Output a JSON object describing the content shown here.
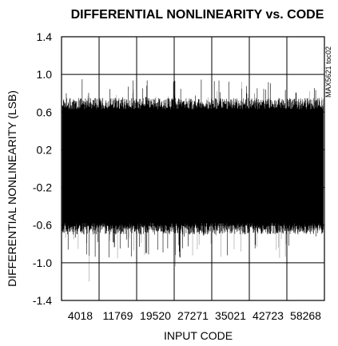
{
  "chart_data": {
    "type": "line",
    "title": "DIFFERENTIAL NONLINEARITY vs. CODE",
    "xlabel": "INPUT CODE",
    "ylabel": "DIFFERENTIAL NONLINEARITY (LSB)",
    "figure_code": "MAX5621 toc02",
    "x_tick_labels": [
      "4018",
      "11769",
      "19520",
      "27271",
      "35021",
      "42723",
      "58268"
    ],
    "y_tick_labels": [
      "1.4",
      "1.0",
      "0.6",
      "0.2",
      "-0.2",
      "-0.6",
      "-1.0",
      "-1.4"
    ],
    "y_ticks": [
      1.4,
      1.0,
      0.6,
      0.2,
      -0.2,
      -0.6,
      -1.0,
      -1.4
    ],
    "ylim": [
      -1.4,
      1.4
    ],
    "xlim": [
      0,
      65535
    ],
    "grid": true,
    "series": [
      {
        "dense_band": {
          "typical_max": 0.75,
          "typical_min": -0.7,
          "peak_max": 0.95,
          "peak_min": -1.2
        }
      }
    ]
  }
}
